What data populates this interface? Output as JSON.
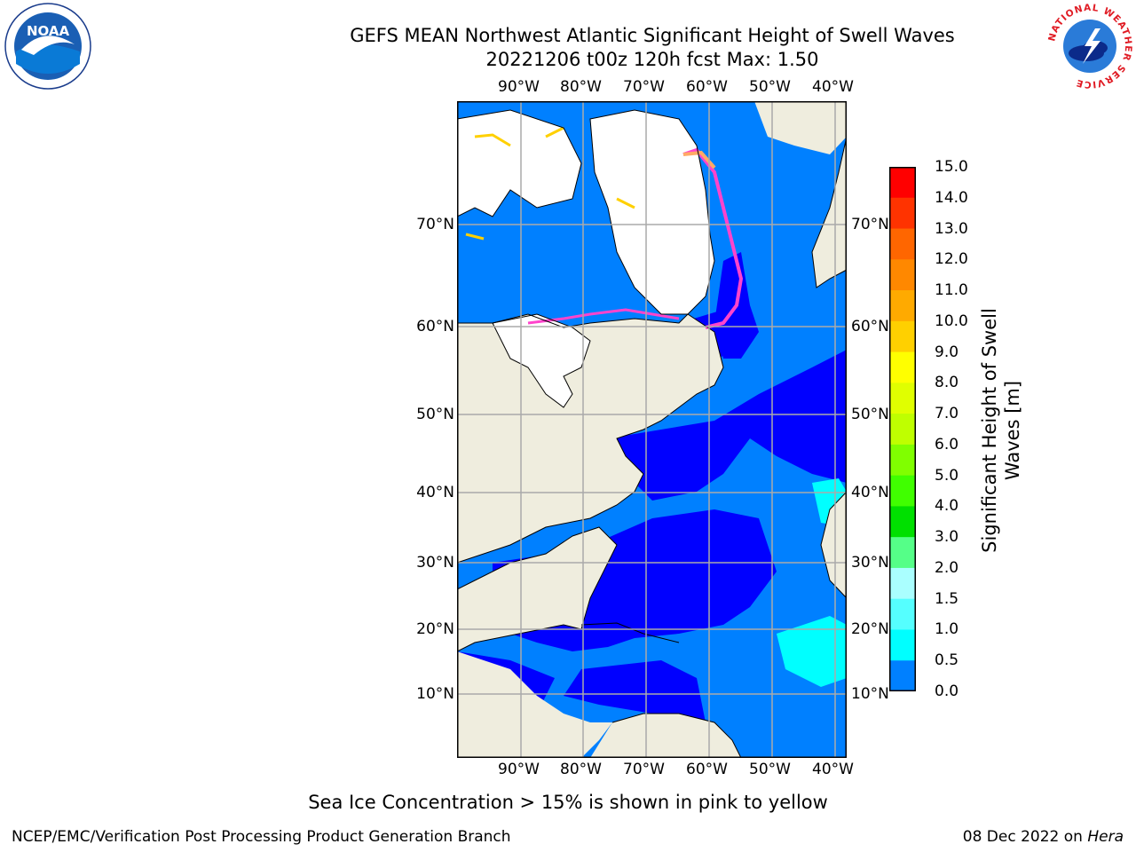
{
  "title": {
    "line1": "GEFS MEAN Northwest Atlantic Significant Height of Swell Waves",
    "line2": "20221206 t00z 120h fcst   Max: 1.50"
  },
  "map": {
    "lon_labels": [
      "90°W",
      "80°W",
      "70°W",
      "60°W",
      "50°W",
      "40°W"
    ],
    "lat_labels": [
      "70°N",
      "60°N",
      "50°N",
      "40°N",
      "30°N",
      "20°N",
      "10°N"
    ],
    "colors": {
      "land": "#efedde",
      "ice_free": "#ffffff",
      "deep_blue": "#0000ff",
      "mid_blue": "#0080ff",
      "cyan": "#00ffff",
      "grid": "#aaaaaa",
      "ice_pink": "#ff44cc",
      "ice_yellow": "#ffd000"
    }
  },
  "colorbar": {
    "label": "Significant Height of Swell Waves [m]",
    "ticks": [
      "15.0",
      "14.0",
      "13.0",
      "12.0",
      "11.0",
      "10.0",
      "9.0",
      "8.0",
      "7.0",
      "6.0",
      "5.0",
      "4.0",
      "3.0",
      "2.0",
      "1.5",
      "1.0",
      "0.5",
      "0.0"
    ],
    "colors": [
      "#ff0000",
      "#ff3300",
      "#ff6600",
      "#ff8800",
      "#ffaa00",
      "#ffd000",
      "#ffff00",
      "#e0ff00",
      "#bfff00",
      "#80ff00",
      "#40ff00",
      "#00e000",
      "#55ff88",
      "#aaffff",
      "#55ffff",
      "#00ffff",
      "#0080ff",
      "#0000ff"
    ]
  },
  "note": "Sea Ice Concentration > 15% is shown in pink to yellow",
  "footer": {
    "left": "NCEP/EMC/Verification Post Processing Product Generation Branch",
    "date": "08 Dec 2022 on ",
    "host": "Hera"
  },
  "logos": {
    "noaa": "NOAA",
    "nws": "NATIONAL WEATHER SERVICE"
  }
}
